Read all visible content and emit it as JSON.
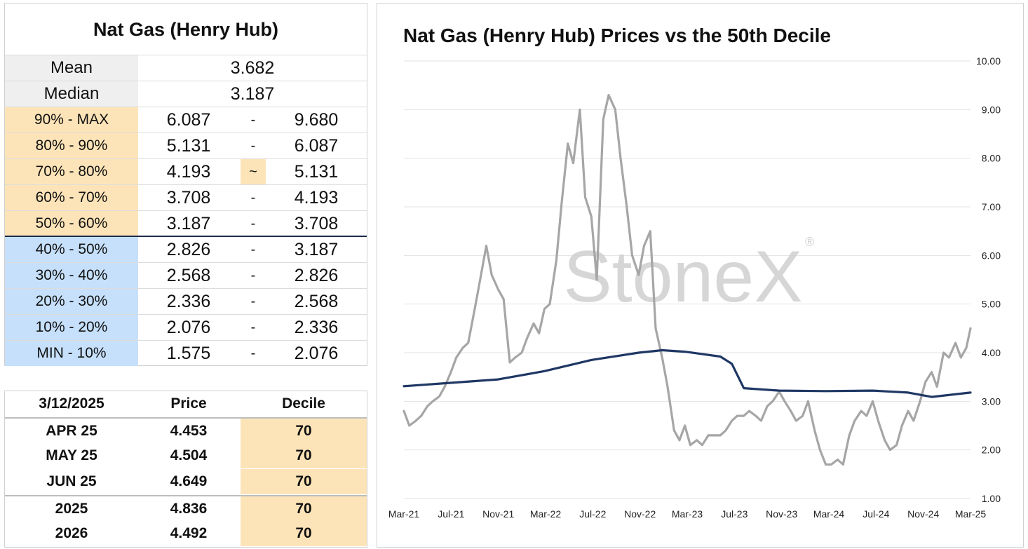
{
  "stats": {
    "title": "Nat Gas (Henry Hub)",
    "mean": {
      "label": "Mean",
      "value": "3.682"
    },
    "median": {
      "label": "Median",
      "value": "3.187"
    },
    "deciles": [
      {
        "label": "90% - MAX",
        "low": "6.087",
        "sep": "-",
        "high": "9.680",
        "group": "upper"
      },
      {
        "label": "80% - 90%",
        "low": "5.131",
        "sep": "-",
        "high": "6.087",
        "group": "upper"
      },
      {
        "label": "70% - 80%",
        "low": "4.193",
        "sep": "~",
        "high": "5.131",
        "group": "upper",
        "highlight": true
      },
      {
        "label": "60% - 70%",
        "low": "3.708",
        "sep": "-",
        "high": "4.193",
        "group": "upper"
      },
      {
        "label": "50% - 60%",
        "low": "3.187",
        "sep": "-",
        "high": "3.708",
        "group": "upper"
      },
      {
        "label": "40% - 50%",
        "low": "2.826",
        "sep": "-",
        "high": "3.187",
        "group": "lower"
      },
      {
        "label": "30% - 40%",
        "low": "2.568",
        "sep": "-",
        "high": "2.826",
        "group": "lower"
      },
      {
        "label": "20% - 30%",
        "low": "2.336",
        "sep": "-",
        "high": "2.568",
        "group": "lower"
      },
      {
        "label": "10% - 20%",
        "low": "2.076",
        "sep": "-",
        "high": "2.336",
        "group": "lower"
      },
      {
        "label": "MIN - 10%",
        "low": "1.575",
        "sep": "-",
        "high": "2.076",
        "group": "lower"
      }
    ]
  },
  "prices": {
    "headers": [
      "3/12/2025",
      "Price",
      "Decile"
    ],
    "rows": [
      {
        "contract": "APR 25",
        "price": "4.453",
        "decile": "70"
      },
      {
        "contract": "MAY 25",
        "price": "4.504",
        "decile": "70"
      },
      {
        "contract": "JUN 25",
        "price": "4.649",
        "decile": "70"
      },
      {
        "contract": "2025",
        "price": "4.836",
        "decile": "70"
      },
      {
        "contract": "2026",
        "price": "4.492",
        "decile": "70"
      }
    ]
  },
  "colors": {
    "price_line": "#a6a6a6",
    "decile_line": "#1f3864",
    "upper_fill": "#fde4b8",
    "lower_fill": "#c6e0fb"
  },
  "chart_data": {
    "type": "line",
    "title": "Nat Gas (Henry Hub) Prices vs the 50th Decile",
    "watermark": "StoneX",
    "xlabel": "",
    "ylabel": "",
    "ylim": [
      1.0,
      10.0
    ],
    "y_ticks": [
      "1.00",
      "2.00",
      "3.00",
      "4.00",
      "5.00",
      "6.00",
      "7.00",
      "8.00",
      "9.00",
      "10.00"
    ],
    "x_ticks": [
      "Mar-21",
      "Jul-21",
      "Nov-21",
      "Mar-22",
      "Jul-22",
      "Nov-22",
      "Mar-23",
      "Jul-23",
      "Nov-23",
      "Mar-24",
      "Jul-24",
      "Nov-24",
      "Mar-25"
    ],
    "grid": "horizontal",
    "y_axis_side": "right",
    "series": [
      {
        "type": "price",
        "x": [
          "2021-03-01",
          "2021-03-15",
          "2021-04-01",
          "2021-04-15",
          "2021-05-01",
          "2021-05-15",
          "2021-06-01",
          "2021-06-15",
          "2021-07-01",
          "2021-07-15",
          "2021-08-01",
          "2021-08-15",
          "2021-09-01",
          "2021-09-15",
          "2021-10-01",
          "2021-10-15",
          "2021-11-01",
          "2021-11-15",
          "2021-12-01",
          "2021-12-15",
          "2022-01-01",
          "2022-01-15",
          "2022-02-01",
          "2022-02-15",
          "2022-03-01",
          "2022-03-15",
          "2022-04-01",
          "2022-04-15",
          "2022-05-01",
          "2022-05-15",
          "2022-06-01",
          "2022-06-15",
          "2022-07-01",
          "2022-07-15",
          "2022-08-01",
          "2022-08-15",
          "2022-09-01",
          "2022-09-15",
          "2022-10-01",
          "2022-10-15",
          "2022-11-01",
          "2022-11-15",
          "2022-12-01",
          "2022-12-15",
          "2023-01-01",
          "2023-01-15",
          "2023-02-01",
          "2023-02-15",
          "2023-03-01",
          "2023-03-15",
          "2023-04-01",
          "2023-04-15",
          "2023-05-01",
          "2023-05-15",
          "2023-06-01",
          "2023-06-15",
          "2023-07-01",
          "2023-07-15",
          "2023-08-01",
          "2023-08-15",
          "2023-09-01",
          "2023-09-15",
          "2023-10-01",
          "2023-10-15",
          "2023-11-01",
          "2023-11-15",
          "2023-12-01",
          "2023-12-15",
          "2024-01-01",
          "2024-01-15",
          "2024-02-01",
          "2024-02-15",
          "2024-03-01",
          "2024-03-15",
          "2024-04-01",
          "2024-04-15",
          "2024-05-01",
          "2024-05-15",
          "2024-06-01",
          "2024-06-15",
          "2024-07-01",
          "2024-07-15",
          "2024-08-01",
          "2024-08-15",
          "2024-09-01",
          "2024-09-15",
          "2024-10-01",
          "2024-10-15",
          "2024-11-01",
          "2024-11-15",
          "2024-12-01",
          "2024-12-15",
          "2025-01-01",
          "2025-01-15",
          "2025-02-01",
          "2025-02-15",
          "2025-03-01",
          "2025-03-12"
        ],
        "y": [
          2.8,
          2.5,
          2.6,
          2.7,
          2.9,
          3.0,
          3.1,
          3.3,
          3.6,
          3.9,
          4.1,
          4.2,
          4.9,
          5.5,
          6.2,
          5.6,
          5.3,
          5.1,
          3.8,
          3.9,
          4.0,
          4.3,
          4.6,
          4.4,
          4.9,
          5.0,
          5.9,
          7.1,
          8.3,
          7.9,
          9.0,
          7.2,
          6.8,
          5.5,
          8.8,
          9.3,
          9.0,
          8.0,
          7.0,
          6.0,
          5.6,
          6.2,
          6.5,
          4.5,
          3.9,
          3.3,
          2.4,
          2.2,
          2.5,
          2.1,
          2.2,
          2.1,
          2.3,
          2.3,
          2.3,
          2.4,
          2.6,
          2.7,
          2.7,
          2.8,
          2.7,
          2.6,
          2.9,
          3.0,
          3.2,
          3.0,
          2.8,
          2.6,
          2.7,
          3.0,
          2.4,
          2.0,
          1.7,
          1.7,
          1.8,
          1.7,
          2.3,
          2.6,
          2.8,
          2.7,
          3.0,
          2.6,
          2.2,
          2.0,
          2.1,
          2.5,
          2.8,
          2.6,
          3.0,
          3.4,
          3.6,
          3.3,
          4.0,
          3.9,
          4.2,
          3.9,
          4.1,
          4.5
        ]
      },
      {
        "type": "decile",
        "x": [
          "2021-03-01",
          "2021-07-01",
          "2021-11-01",
          "2022-03-01",
          "2022-07-01",
          "2022-11-01",
          "2023-01-01",
          "2023-03-01",
          "2023-06-01",
          "2023-07-01",
          "2023-08-01",
          "2023-11-01",
          "2024-03-01",
          "2024-07-01",
          "2024-10-01",
          "2024-12-01",
          "2025-03-12"
        ],
        "y": [
          3.31,
          3.38,
          3.45,
          3.62,
          3.85,
          4.0,
          4.05,
          4.02,
          3.92,
          3.77,
          3.27,
          3.22,
          3.21,
          3.22,
          3.18,
          3.09,
          3.18
        ]
      }
    ]
  }
}
